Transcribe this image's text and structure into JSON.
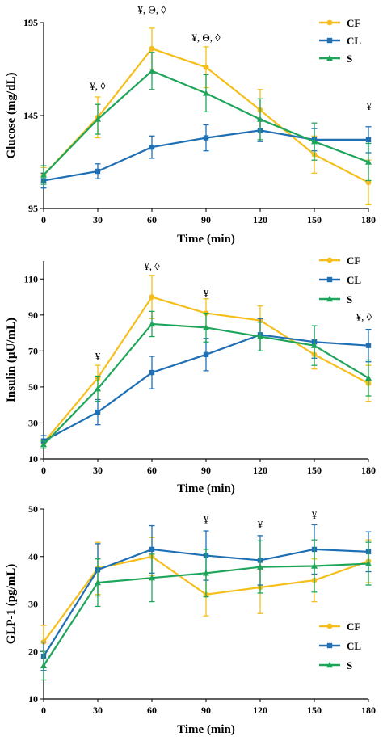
{
  "chart_data": [
    {
      "type": "line",
      "xlabel": "Time (min)",
      "ylabel": "Glucose (mg/dL)",
      "x": [
        0,
        30,
        60,
        90,
        120,
        150,
        180
      ],
      "xlim": [
        0,
        180
      ],
      "ylim": [
        95,
        195
      ],
      "yticks": [
        95,
        145,
        195
      ],
      "legend_position": "top-right",
      "series": [
        {
          "name": "CF",
          "color": "#f6be1a",
          "marker": "circle",
          "values": [
            113,
            144,
            181,
            171,
            148,
            124,
            109
          ],
          "errors": [
            4,
            11,
            11,
            11,
            11,
            10,
            12
          ]
        },
        {
          "name": "CL",
          "color": "#1f6fb5",
          "marker": "square",
          "values": [
            110,
            115,
            128,
            133,
            137,
            132,
            132
          ],
          "errors": [
            4,
            4,
            6,
            7,
            6,
            6,
            7
          ]
        },
        {
          "name": "S",
          "color": "#1fa55a",
          "marker": "triangle",
          "values": [
            113,
            143,
            169,
            157,
            143,
            131,
            120
          ],
          "errors": [
            5,
            8,
            10,
            10,
            11,
            10,
            10
          ]
        }
      ],
      "annotations": [
        {
          "x": 30,
          "y": 159,
          "text": "¥, ◊"
        },
        {
          "x": 60,
          "y": 200,
          "text": "¥, Θ, ◊"
        },
        {
          "x": 90,
          "y": 185,
          "text": "¥, Θ, ◊"
        },
        {
          "x": 180,
          "y": 148,
          "text": "¥"
        }
      ]
    },
    {
      "type": "line",
      "xlabel": "Time (min)",
      "ylabel": "Insulin (µU/mL)",
      "x": [
        0,
        30,
        60,
        90,
        120,
        150,
        180
      ],
      "xlim": [
        0,
        180
      ],
      "ylim": [
        10,
        120
      ],
      "yticks": [
        10,
        30,
        50,
        70,
        90,
        110
      ],
      "legend_position": "top-right",
      "series": [
        {
          "name": "CF",
          "color": "#f6be1a",
          "marker": "circle",
          "values": [
            19,
            55,
            100,
            91,
            87,
            68,
            52
          ],
          "errors": [
            2,
            7,
            12,
            8,
            8,
            8,
            10
          ]
        },
        {
          "name": "CL",
          "color": "#1f6fb5",
          "marker": "square",
          "values": [
            20,
            36,
            58,
            68,
            79,
            75,
            73
          ],
          "errors": [
            3,
            7,
            9,
            9,
            9,
            9,
            9
          ]
        },
        {
          "name": "S",
          "color": "#1fa55a",
          "marker": "triangle",
          "values": [
            18,
            49,
            85,
            83,
            78,
            73,
            55
          ],
          "errors": [
            2,
            7,
            7,
            8,
            8,
            11,
            10
          ]
        }
      ],
      "annotations": [
        {
          "x": 30,
          "y": 65,
          "text": "¥"
        },
        {
          "x": 60,
          "y": 115,
          "text": "¥, ◊"
        },
        {
          "x": 90,
          "y": 100,
          "text": "¥"
        },
        {
          "x": 180,
          "y": 87,
          "text": "¥, ◊"
        }
      ]
    },
    {
      "type": "line",
      "xlabel": "Time (min)",
      "ylabel": "GLP-1 (pg/mL)",
      "x": [
        0,
        30,
        60,
        90,
        120,
        150,
        180
      ],
      "xlim": [
        0,
        180
      ],
      "ylim": [
        10,
        50
      ],
      "yticks": [
        10,
        20,
        30,
        40,
        50
      ],
      "legend_position": "bottom-right",
      "series": [
        {
          "name": "CF",
          "color": "#f6be1a",
          "marker": "circle",
          "values": [
            22,
            37.5,
            40,
            32,
            33.5,
            35,
            39
          ],
          "errors": [
            3.5,
            5.5,
            4,
            4.5,
            5.5,
            4.5,
            4.5
          ]
        },
        {
          "name": "CL",
          "color": "#1f6fb5",
          "marker": "square",
          "values": [
            19,
            37.2,
            41.5,
            40.2,
            39.2,
            41.5,
            41
          ],
          "errors": [
            3,
            5.5,
            5,
            5.2,
            5.2,
            5.2,
            4.2
          ]
        },
        {
          "name": "S",
          "color": "#1fa55a",
          "marker": "triangle",
          "values": [
            17,
            34.5,
            35.5,
            36.5,
            37.8,
            38,
            38.5
          ],
          "errors": [
            3,
            5,
            5,
            5,
            5.5,
            5.5,
            4.5
          ]
        }
      ],
      "annotations": [
        {
          "x": 90,
          "y": 47,
          "text": "¥"
        },
        {
          "x": 120,
          "y": 46,
          "text": "¥"
        },
        {
          "x": 150,
          "y": 48,
          "text": "¥"
        }
      ]
    }
  ]
}
